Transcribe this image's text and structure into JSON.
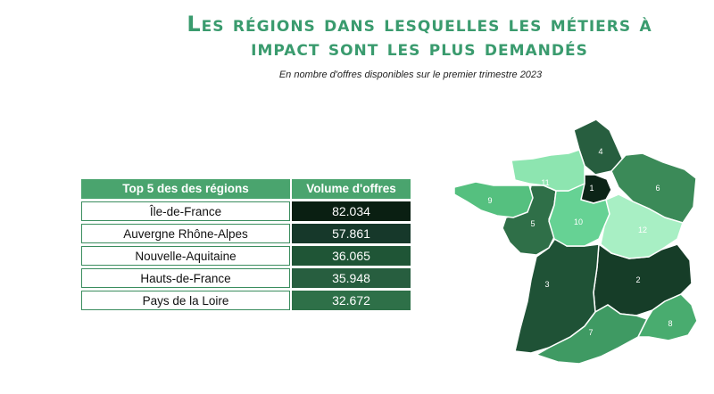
{
  "title": "Les régions dans lesquelles les métiers à impact sont les plus demandés",
  "subtitle": "En nombre d'offres disponibles sur le premier trimestre 2023",
  "chart_data": {
    "type": "table",
    "columns": [
      "Top 5 des des régions",
      "Volume d'offres"
    ],
    "rows": [
      {
        "region": "Île-de-France",
        "value": "82.034",
        "color": "#0a1f12"
      },
      {
        "region": "Auvergne Rhône-Alpes",
        "value": "57.861",
        "color": "#16382a"
      },
      {
        "region": "Nouvelle-Aquitaine",
        "value": "36.065",
        "color": "#1f5536"
      },
      {
        "region": "Hauts-de-France",
        "value": "35.948",
        "color": "#275e3f"
      },
      {
        "region": "Pays de la Loire",
        "value": "32.672",
        "color": "#2e7048"
      }
    ]
  },
  "map": {
    "regions": [
      {
        "rank": "1",
        "color": "#0c2417"
      },
      {
        "rank": "2",
        "color": "#163d28"
      },
      {
        "rank": "3",
        "color": "#1f5236"
      },
      {
        "rank": "4",
        "color": "#275e3f"
      },
      {
        "rank": "5",
        "color": "#2f6f48"
      },
      {
        "rank": "6",
        "color": "#3b8a58"
      },
      {
        "rank": "7",
        "color": "#3f9a63"
      },
      {
        "rank": "8",
        "color": "#49ac6f"
      },
      {
        "rank": "9",
        "color": "#55c07f"
      },
      {
        "rank": "10",
        "color": "#66d294"
      },
      {
        "rank": "11",
        "color": "#8de5b0"
      },
      {
        "rank": "12",
        "color": "#a8efc4"
      }
    ]
  }
}
